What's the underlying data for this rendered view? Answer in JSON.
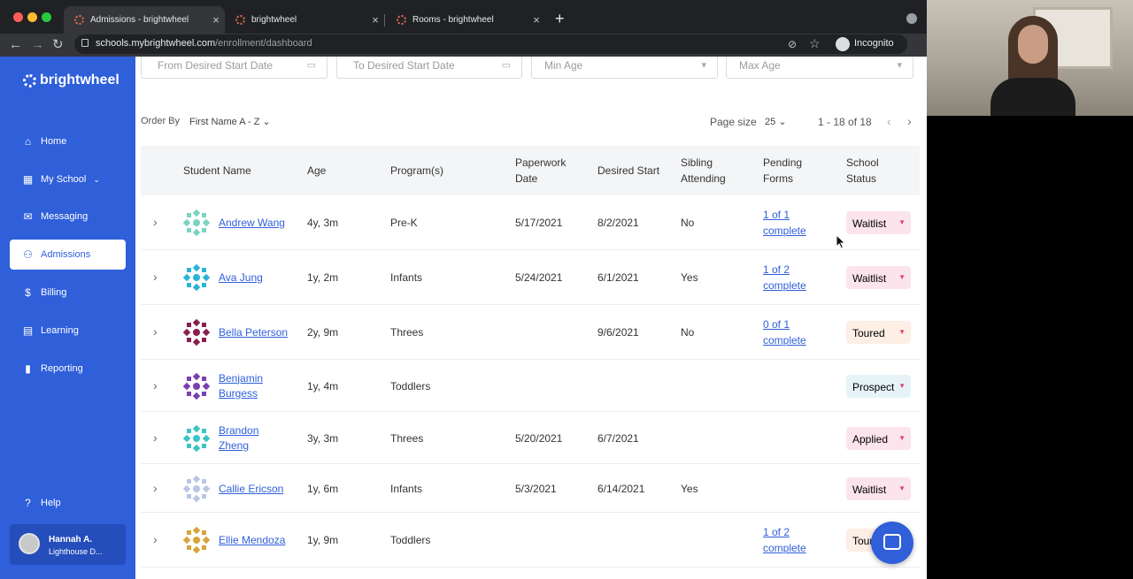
{
  "browser": {
    "tabs": [
      {
        "title": "Admissions - brightwheel",
        "active": true
      },
      {
        "title": "brightwheel",
        "active": false
      },
      {
        "title": "Rooms - brightwheel",
        "active": false
      }
    ],
    "url_host": "schools.mybrightwheel.com",
    "url_path": "/enrollment/dashboard",
    "profile": "Incognito"
  },
  "sidebar": {
    "logo": "brightwheel",
    "items": [
      {
        "label": "Home",
        "icon": "home-icon",
        "symbol": "⌂"
      },
      {
        "label": "My School",
        "icon": "school-icon",
        "symbol": "▦",
        "chevron": "⌄"
      },
      {
        "label": "Messaging",
        "icon": "messaging-icon",
        "symbol": "✉"
      },
      {
        "label": "Admissions",
        "icon": "admissions-icon",
        "symbol": "⚇",
        "active": true
      },
      {
        "label": "Billing",
        "icon": "billing-icon",
        "symbol": "$"
      },
      {
        "label": "Learning",
        "icon": "learning-icon",
        "symbol": "▤"
      },
      {
        "label": "Reporting",
        "icon": "reporting-icon",
        "symbol": "▮"
      }
    ],
    "help": "Help",
    "user": {
      "name": "Hannah A.",
      "school": "Lighthouse D..."
    }
  },
  "filters": {
    "from_date": "From Desired Start Date",
    "to_date": "To Desired Start Date",
    "min_age": "Min Age",
    "max_age": "Max Age"
  },
  "controls": {
    "order_by_label": "Order By",
    "order_by_value": "First Name A - Z",
    "page_size_label": "Page size",
    "page_size_value": "25",
    "range": "1 - 18 of 18"
  },
  "table": {
    "headers": {
      "student": "Student Name",
      "age": "Age",
      "programs": "Program(s)",
      "paperwork_1": "Paperwork",
      "paperwork_2": "Date",
      "desired": "Desired Start",
      "sibling_1": "Sibling",
      "sibling_2": "Attending",
      "pending_1": "Pending",
      "pending_2": "Forms",
      "status_1": "School",
      "status_2": "Status"
    },
    "rows": [
      {
        "name_1": "Andrew Wang",
        "name_2": "",
        "age": "4y, 3m",
        "program": "Pre-K",
        "paperwork": "5/17/2021",
        "desired": "8/2/2021",
        "sibling": "No",
        "forms_1": "1 of 1",
        "forms_2": "complete",
        "status": "Waitlist",
        "status_color": "#fce4ec",
        "avatar_color": "#7cd3c1"
      },
      {
        "name_1": "Ava Jung",
        "name_2": "",
        "age": "1y, 2m",
        "program": "Infants",
        "paperwork": "5/24/2021",
        "desired": "6/1/2021",
        "sibling": "Yes",
        "forms_1": "1 of 2",
        "forms_2": "complete",
        "status": "Waitlist",
        "status_color": "#fce4ec",
        "avatar_color": "#2bb3d6"
      },
      {
        "name_1": "Bella Peterson",
        "name_2": "",
        "age": "2y, 9m",
        "program": "Threes",
        "paperwork": "",
        "desired": "9/6/2021",
        "sibling": "No",
        "forms_1": "0 of 1",
        "forms_2": "complete",
        "status": "Toured",
        "status_color": "#fdeee6",
        "avatar_color": "#8a1f4f"
      },
      {
        "name_1": "Benjamin",
        "name_2": "Burgess",
        "age": "1y, 4m",
        "program": "Toddlers",
        "paperwork": "",
        "desired": "",
        "sibling": "",
        "forms_1": "",
        "forms_2": "",
        "status": "Prospect",
        "status_color": "#e6f4f8",
        "avatar_color": "#7a3fb0"
      },
      {
        "name_1": "Brandon",
        "name_2": "Zheng",
        "age": "3y, 3m",
        "program": "Threes",
        "paperwork": "5/20/2021",
        "desired": "6/7/2021",
        "sibling": "",
        "forms_1": "",
        "forms_2": "",
        "status": "Applied",
        "status_color": "#fce4ec",
        "avatar_color": "#3cc4c4"
      },
      {
        "name_1": "Callie Ericson",
        "name_2": "",
        "age": "1y, 6m",
        "program": "Infants",
        "paperwork": "5/3/2021",
        "desired": "6/14/2021",
        "sibling": "Yes",
        "forms_1": "",
        "forms_2": "",
        "status": "Waitlist",
        "status_color": "#fce4ec",
        "avatar_color": "#b9c6e8"
      },
      {
        "name_1": "Ellie Mendoza",
        "name_2": "",
        "age": "1y, 9m",
        "program": "Toddlers",
        "paperwork": "",
        "desired": "",
        "sibling": "",
        "forms_1": "1 of 2",
        "forms_2": "complete",
        "status": "Toured",
        "status_color": "#fdeee6",
        "avatar_color": "#d9a23a"
      }
    ]
  },
  "colors": {
    "brand": "#2f5fd9",
    "link": "#2f5fd9"
  }
}
